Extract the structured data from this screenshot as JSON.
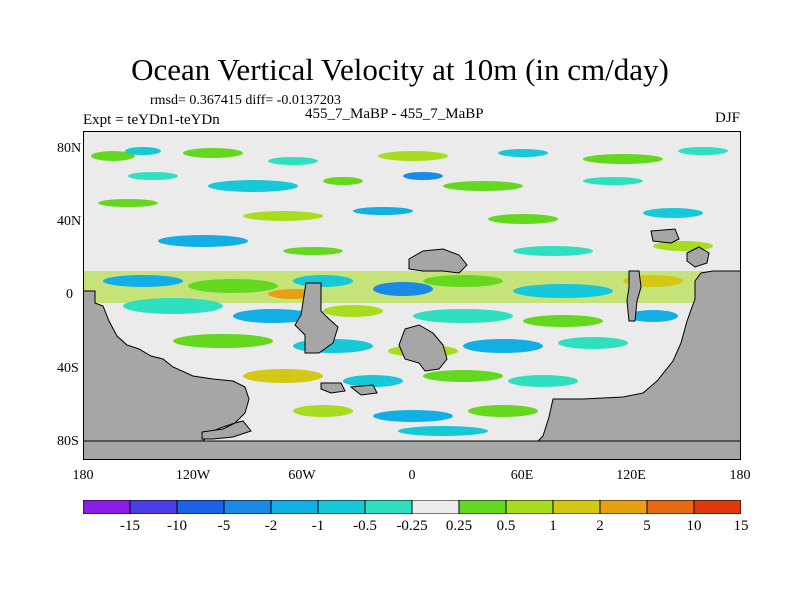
{
  "title": "Ocean Vertical Velocity at 10m (in cm/day)",
  "stats": "rmsd= 0.367415 diff= -0.0137203",
  "experiment": "Expt = teYDn1-teYDn",
  "comparison": "455_7_MaBP - 455_7_MaBP",
  "season": "DJF",
  "y_axis": [
    "80N",
    "40N",
    "0",
    "40S",
    "80S"
  ],
  "x_axis": [
    "180",
    "120W",
    "60W",
    "0",
    "60E",
    "120E",
    "180"
  ],
  "legend": {
    "labels": [
      "-15",
      "-10",
      "-5",
      "-2",
      "-1",
      "-0.5",
      "-0.25",
      "0.25",
      "0.5",
      "1",
      "2",
      "5",
      "10",
      "15"
    ],
    "colors": [
      "#8a1ee8",
      "#4a3ee6",
      "#1a62e6",
      "#1a8ae8",
      "#12aee6",
      "#16c8d8",
      "#2ee0c0",
      "#ebebeb",
      "#64d81e",
      "#a8dc1e",
      "#d4c816",
      "#e8a012",
      "#e86a10",
      "#e03a0c"
    ]
  },
  "colors": {
    "land": "#a6a6a6",
    "ocean_neutral": "#ebebeb"
  }
}
